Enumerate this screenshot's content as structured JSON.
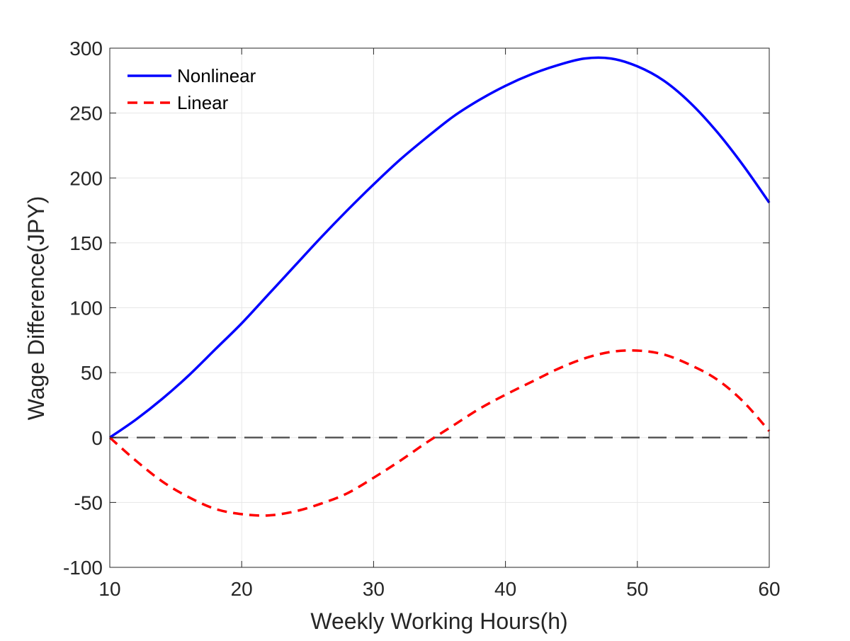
{
  "chart_data": {
    "type": "line",
    "title": "",
    "xlabel": "Weekly Working Hours(h)",
    "ylabel": "Wage Difference(JPY)",
    "xlim": [
      10,
      60
    ],
    "ylim": [
      -100,
      300
    ],
    "xticks": [
      10,
      20,
      30,
      40,
      50,
      60
    ],
    "yticks": [
      -100,
      -50,
      0,
      50,
      100,
      150,
      200,
      250,
      300
    ],
    "xtick_labels": [
      "10",
      "20",
      "30",
      "40",
      "50",
      "60"
    ],
    "ytick_labels": [
      "-100",
      "-50",
      "0",
      "50",
      "100",
      "150",
      "200",
      "250",
      "300"
    ],
    "grid": true,
    "legend_position": "top-left",
    "series": [
      {
        "name": "Nonlinear",
        "color": "#0000ff",
        "style": "solid",
        "x": [
          10,
          12,
          14,
          16,
          18,
          20,
          22,
          24,
          26,
          28,
          30,
          32,
          34,
          36,
          38,
          40,
          42,
          44,
          46,
          48,
          50,
          52,
          54,
          56,
          58,
          60
        ],
        "y": [
          0,
          14,
          30,
          48,
          68,
          88,
          110,
          132,
          154,
          175,
          195,
          214,
          231,
          247,
          260,
          271,
          280,
          287,
          292,
          292,
          286,
          275,
          258,
          236,
          210,
          181
        ]
      },
      {
        "name": "Linear",
        "color": "#ff0000",
        "style": "dashed",
        "x": [
          10,
          12,
          14,
          16,
          18,
          20,
          22,
          24,
          26,
          28,
          30,
          32,
          34,
          36,
          38,
          40,
          42,
          44,
          46,
          48,
          50,
          52,
          54,
          56,
          58,
          60
        ],
        "y": [
          0,
          -18,
          -34,
          -46,
          -55,
          -59,
          -60,
          -57,
          -51,
          -43,
          -31,
          -18,
          -4,
          9,
          22,
          33,
          43,
          53,
          61,
          66,
          67,
          64,
          56,
          45,
          28,
          5
        ]
      },
      {
        "name": "",
        "color": "#595959",
        "style": "long-dash",
        "x": [
          10,
          60
        ],
        "y": [
          0,
          0
        ]
      }
    ]
  }
}
